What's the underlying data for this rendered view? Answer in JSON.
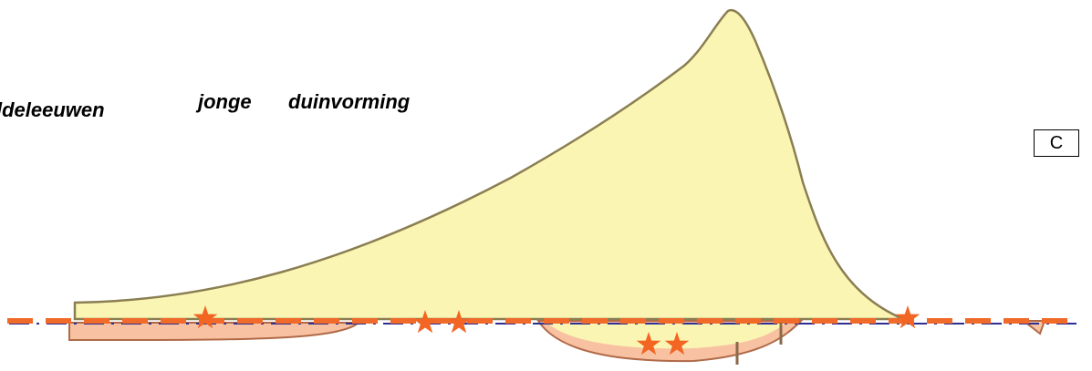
{
  "labels": {
    "left": "ldeleeuwen",
    "jonge": "jonge",
    "duinvorming": "duinvorming",
    "panel": "C"
  },
  "colors": {
    "dune_fill": "#fbf5b4",
    "dune_stroke": "#8a7e52",
    "lens_fill": "#f8c2a2",
    "lens_stroke": "#b06a48",
    "dash_orange": "#f06a2a",
    "dash_blue": "#2e2f92",
    "star": "#f26522",
    "stake": "#8a6a4a"
  },
  "icons": {
    "marker": "star-icon",
    "post": "stake-icon"
  }
}
